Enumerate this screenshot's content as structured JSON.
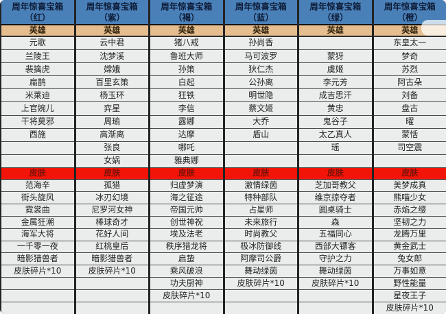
{
  "theme": {
    "header-bg": "#4a80b8",
    "header-text": "#0e1c38",
    "hero-row-bg": "#e5bd8e",
    "skin-row-bg": "#f21408",
    "skin-row-text": "#7a120a",
    "cell-bg": "#ebecec",
    "cell-text": "#232323",
    "grid-line": "#232323"
  },
  "table": {
    "columns": [
      {
        "id": "red",
        "title": "周年惊喜宝箱",
        "subtitle": "（红）",
        "hero_section_label": "英雄",
        "skin_section_label": "皮肤",
        "heroes": [
          "元歌",
          "兰陵王",
          "裴擒虎",
          "扁鹊",
          "米莱迪",
          "上官婉儿",
          "干将莫邪",
          "西施",
          "",
          ""
        ],
        "skins": [
          "范海辛",
          "街头旋风",
          "霓裳曲",
          "金属狂潮",
          "海军大将",
          "一千零一夜",
          "暗影猎兽者",
          "皮肤碎片*10",
          "",
          "",
          ""
        ]
      },
      {
        "id": "purple",
        "title": "周年惊喜宝箱",
        "subtitle": "（紫）",
        "hero_section_label": "英雄",
        "skin_section_label": "皮肤",
        "heroes": [
          "云中君",
          "沈梦溪",
          "嫦娥",
          "百里玄策",
          "杨玉环",
          "弈星",
          "周瑜",
          "高渐离",
          "张良",
          "女娲"
        ],
        "skins": [
          "孤猎",
          "冰刃幻境",
          "尼罗河女神",
          "棒球奇才",
          "花好人间",
          "红桃皇后",
          "暗影猎兽者",
          "皮肤碎片*10",
          "",
          "",
          ""
        ]
      },
      {
        "id": "brown",
        "title": "周年惊喜宝箱",
        "subtitle": "（褐）",
        "hero_section_label": "英雄",
        "skin_section_label": "皮肤",
        "heroes": [
          "猪八戒",
          "鲁班大师",
          "孙策",
          "白起",
          "狂铁",
          "李信",
          "露娜",
          "达摩",
          "哪吒",
          "雅典娜"
        ],
        "skins": [
          "归虚梦演",
          "海之征途",
          "帝国元帅",
          "创世神祝",
          "埃及法老",
          "秩序猎龙将",
          "启蛰",
          "乘风破浪",
          "功夫厨神",
          "皮肤碎片*10",
          ""
        ]
      },
      {
        "id": "blue",
        "title": "周年惊喜宝箱",
        "subtitle": "（蓝）",
        "hero_section_label": "英雄",
        "skin_section_label": "皮肤",
        "heroes": [
          "孙尚香",
          "马可波罗",
          "狄仁杰",
          "公孙离",
          "明世隐",
          "蔡文姬",
          "大乔",
          "盾山",
          "",
          ""
        ],
        "skins": [
          "激情绿茵",
          "特种部队",
          "占星师",
          "未来旅行",
          "时尚教父",
          "极冰防御线",
          "阿摩司公爵",
          "舞动绿茵",
          "皮肤碎片*10",
          "",
          ""
        ]
      },
      {
        "id": "green",
        "title": "周年惊喜宝箱",
        "subtitle": "（绿）",
        "hero_section_label": "英雄",
        "skin_section_label": "皮肤",
        "heroes": [
          "",
          "蒙犽",
          "虞姬",
          "李元芳",
          "成吉思汗",
          "黄忠",
          "鬼谷子",
          "太乙真人",
          "瑶",
          ""
        ],
        "skins": [
          "芝加哥教父",
          "维京掠夺者",
          "圆桌骑士",
          "森",
          "五福同心",
          "西部大镖客",
          "守护之力",
          "舞动绿茵",
          "皮肤碎片*10",
          "",
          ""
        ]
      },
      {
        "id": "orange",
        "title": "周年惊喜宝箱",
        "subtitle": "（橙）",
        "hero_section_label": "英雄",
        "skin_section_label": "皮肤",
        "heroes": [
          "东皇太一",
          "梦奇",
          "苏烈",
          "阿古朵",
          "刘备",
          "盘古",
          "曜",
          "蒙恬",
          "司空震",
          ""
        ],
        "skins": [
          "美梦成真",
          "熊喵少女",
          "赤焰之缨",
          "坚韧之力",
          "龙腾万里",
          "黄金武士",
          "兔女郎",
          "万事如意",
          "野性能量",
          "星夜王子",
          "皮肤碎片*10"
        ]
      }
    ]
  }
}
